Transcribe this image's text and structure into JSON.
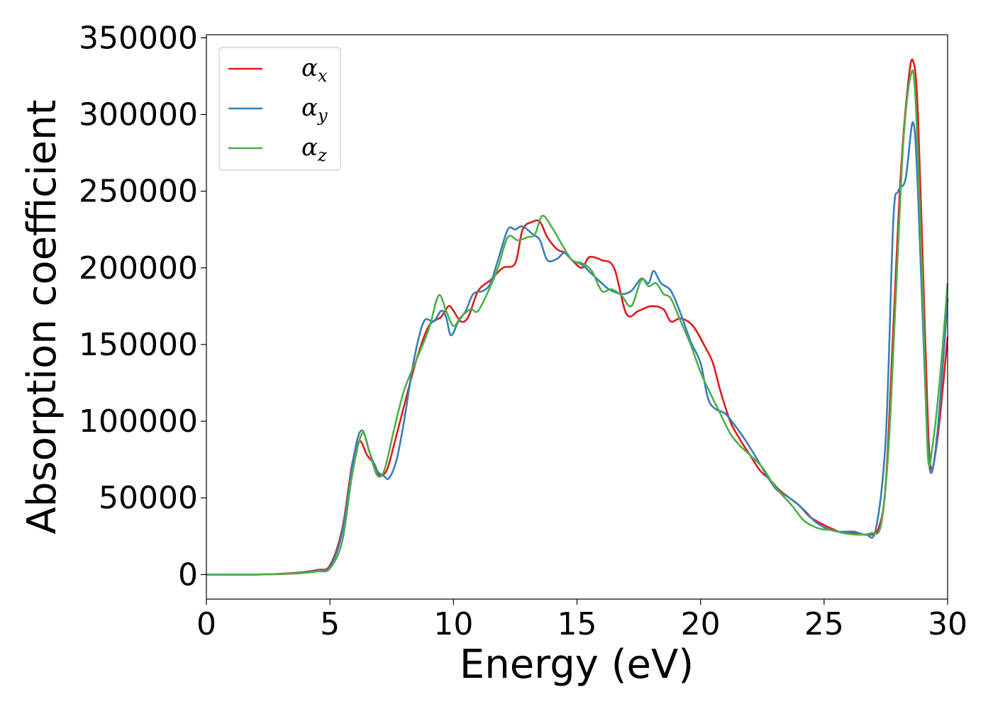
{
  "chart_data": {
    "type": "line",
    "title": "",
    "xlabel": "Energy (eV)",
    "ylabel": "Absorption coefficient",
    "xlim": [
      0,
      30
    ],
    "ylim": [
      -16000,
      352000
    ],
    "xticks": [
      "0",
      "5",
      "10",
      "15",
      "20",
      "25",
      "30"
    ],
    "yticks": [
      "0",
      "50000",
      "100000",
      "150000",
      "200000",
      "250000",
      "300000",
      "350000"
    ],
    "grid": false,
    "legend_position": "top-left",
    "series": [
      {
        "name": "α_x",
        "legend_symbol": "α",
        "legend_sub": "x",
        "color": "#e41a1c",
        "points": [
          [
            0,
            0
          ],
          [
            2,
            0
          ],
          [
            3.5,
            1000
          ],
          [
            4.5,
            3000
          ],
          [
            5,
            6000
          ],
          [
            5.5,
            30000
          ],
          [
            5.9,
            72000
          ],
          [
            6.2,
            87000
          ],
          [
            6.5,
            78000
          ],
          [
            6.8,
            72000
          ],
          [
            7,
            65000
          ],
          [
            7.3,
            68000
          ],
          [
            7.6,
            85000
          ],
          [
            8,
            110000
          ],
          [
            8.5,
            140000
          ],
          [
            9,
            162000
          ],
          [
            9.5,
            168000
          ],
          [
            9.8,
            175000
          ],
          [
            10,
            172000
          ],
          [
            10.3,
            165000
          ],
          [
            10.6,
            168000
          ],
          [
            11,
            185000
          ],
          [
            11.5,
            192000
          ],
          [
            12,
            200000
          ],
          [
            12.5,
            203000
          ],
          [
            12.8,
            225000
          ],
          [
            13.2,
            230000
          ],
          [
            13.5,
            230000
          ],
          [
            13.8,
            220000
          ],
          [
            14.2,
            212000
          ],
          [
            14.5,
            210000
          ],
          [
            14.8,
            205000
          ],
          [
            15.2,
            200000
          ],
          [
            15.5,
            207000
          ],
          [
            16,
            205000
          ],
          [
            16.5,
            200000
          ],
          [
            17,
            170000
          ],
          [
            17.5,
            172000
          ],
          [
            18,
            175000
          ],
          [
            18.5,
            173000
          ],
          [
            18.8,
            165000
          ],
          [
            19.2,
            167000
          ],
          [
            19.7,
            162000
          ],
          [
            20.2,
            148000
          ],
          [
            20.5,
            138000
          ],
          [
            20.8,
            120000
          ],
          [
            21.2,
            100000
          ],
          [
            21.6,
            88000
          ],
          [
            22,
            78000
          ],
          [
            22.4,
            68000
          ],
          [
            22.8,
            62000
          ],
          [
            23.2,
            55000
          ],
          [
            23.6,
            50000
          ],
          [
            24,
            45000
          ],
          [
            24.4,
            38000
          ],
          [
            24.8,
            34000
          ],
          [
            25.3,
            30000
          ],
          [
            25.8,
            27000
          ],
          [
            26.3,
            27000
          ],
          [
            26.8,
            26000
          ],
          [
            27.2,
            30000
          ],
          [
            27.5,
            60000
          ],
          [
            27.8,
            160000
          ],
          [
            28.1,
            260000
          ],
          [
            28.4,
            320000
          ],
          [
            28.6,
            335000
          ],
          [
            28.8,
            300000
          ],
          [
            29.1,
            150000
          ],
          [
            29.3,
            72000
          ],
          [
            29.6,
            90000
          ],
          [
            30,
            155000
          ]
        ]
      },
      {
        "name": "α_y",
        "legend_symbol": "α",
        "legend_sub": "y",
        "color": "#377eb8",
        "points": [
          [
            0,
            0
          ],
          [
            2,
            0
          ],
          [
            3.5,
            800
          ],
          [
            4.5,
            2500
          ],
          [
            5,
            5000
          ],
          [
            5.5,
            28000
          ],
          [
            6,
            80000
          ],
          [
            6.3,
            94000
          ],
          [
            6.6,
            80000
          ],
          [
            6.9,
            68000
          ],
          [
            7.2,
            64000
          ],
          [
            7.4,
            63000
          ],
          [
            7.7,
            75000
          ],
          [
            8,
            100000
          ],
          [
            8.4,
            140000
          ],
          [
            8.8,
            165000
          ],
          [
            9.2,
            165000
          ],
          [
            9.5,
            172000
          ],
          [
            9.7,
            168000
          ],
          [
            9.9,
            156000
          ],
          [
            10.2,
            165000
          ],
          [
            10.5,
            172000
          ],
          [
            10.8,
            183000
          ],
          [
            11.2,
            185000
          ],
          [
            11.5,
            190000
          ],
          [
            11.8,
            205000
          ],
          [
            12.2,
            225000
          ],
          [
            12.5,
            225000
          ],
          [
            12.8,
            227000
          ],
          [
            13.2,
            222000
          ],
          [
            13.5,
            218000
          ],
          [
            13.8,
            205000
          ],
          [
            14.2,
            206000
          ],
          [
            14.5,
            210000
          ],
          [
            14.8,
            205000
          ],
          [
            15.2,
            202000
          ],
          [
            15.6,
            196000
          ],
          [
            16,
            190000
          ],
          [
            16.3,
            186000
          ],
          [
            16.8,
            183000
          ],
          [
            17.2,
            185000
          ],
          [
            17.6,
            193000
          ],
          [
            17.9,
            190000
          ],
          [
            18.1,
            198000
          ],
          [
            18.4,
            190000
          ],
          [
            18.8,
            185000
          ],
          [
            19.2,
            170000
          ],
          [
            19.6,
            152000
          ],
          [
            20,
            138000
          ],
          [
            20.3,
            115000
          ],
          [
            20.6,
            108000
          ],
          [
            21,
            105000
          ],
          [
            21.4,
            97000
          ],
          [
            21.8,
            88000
          ],
          [
            22.3,
            75000
          ],
          [
            22.7,
            64000
          ],
          [
            23.1,
            55000
          ],
          [
            23.6,
            50000
          ],
          [
            24.2,
            42000
          ],
          [
            24.6,
            35000
          ],
          [
            25.1,
            30000
          ],
          [
            25.6,
            28000
          ],
          [
            26.2,
            28000
          ],
          [
            26.7,
            26000
          ],
          [
            27.1,
            30000
          ],
          [
            27.5,
            90000
          ],
          [
            27.8,
            230000
          ],
          [
            28,
            250000
          ],
          [
            28.3,
            258000
          ],
          [
            28.6,
            295000
          ],
          [
            28.8,
            250000
          ],
          [
            29.1,
            120000
          ],
          [
            29.3,
            67000
          ],
          [
            29.6,
            95000
          ],
          [
            30,
            180000
          ]
        ]
      },
      {
        "name": "α_z",
        "legend_symbol": "α",
        "legend_sub": "z",
        "color": "#4daf4a",
        "points": [
          [
            0,
            0
          ],
          [
            2,
            0
          ],
          [
            3.5,
            600
          ],
          [
            4.5,
            2000
          ],
          [
            5,
            4000
          ],
          [
            5.5,
            22000
          ],
          [
            5.9,
            65000
          ],
          [
            6.3,
            92000
          ],
          [
            6.6,
            80000
          ],
          [
            6.9,
            65000
          ],
          [
            7.2,
            68000
          ],
          [
            7.6,
            95000
          ],
          [
            8,
            120000
          ],
          [
            8.5,
            140000
          ],
          [
            9,
            160000
          ],
          [
            9.4,
            182000
          ],
          [
            9.7,
            172000
          ],
          [
            10,
            162000
          ],
          [
            10.3,
            168000
          ],
          [
            10.7,
            173000
          ],
          [
            11,
            172000
          ],
          [
            11.5,
            188000
          ],
          [
            11.8,
            200000
          ],
          [
            12.2,
            220000
          ],
          [
            12.6,
            218000
          ],
          [
            13,
            220000
          ],
          [
            13.3,
            222000
          ],
          [
            13.6,
            234000
          ],
          [
            14,
            226000
          ],
          [
            14.4,
            215000
          ],
          [
            14.8,
            205000
          ],
          [
            15.2,
            203000
          ],
          [
            15.6,
            198000
          ],
          [
            16,
            185000
          ],
          [
            16.4,
            186000
          ],
          [
            16.8,
            182000
          ],
          [
            17.2,
            175000
          ],
          [
            17.6,
            192000
          ],
          [
            17.9,
            188000
          ],
          [
            18.2,
            190000
          ],
          [
            18.5,
            183000
          ],
          [
            18.8,
            180000
          ],
          [
            19.2,
            165000
          ],
          [
            19.6,
            150000
          ],
          [
            20,
            132000
          ],
          [
            20.4,
            118000
          ],
          [
            20.8,
            105000
          ],
          [
            21.2,
            92000
          ],
          [
            21.6,
            84000
          ],
          [
            22,
            78000
          ],
          [
            22.5,
            70000
          ],
          [
            22.9,
            60000
          ],
          [
            23.3,
            52000
          ],
          [
            23.7,
            45000
          ],
          [
            24.2,
            35000
          ],
          [
            24.8,
            30000
          ],
          [
            25.3,
            29000
          ],
          [
            25.8,
            27000
          ],
          [
            26.4,
            26000
          ],
          [
            26.9,
            27000
          ],
          [
            27.3,
            32000
          ],
          [
            27.6,
            80000
          ],
          [
            27.9,
            180000
          ],
          [
            28.2,
            280000
          ],
          [
            28.5,
            325000
          ],
          [
            28.7,
            310000
          ],
          [
            29,
            180000
          ],
          [
            29.2,
            78000
          ],
          [
            29.4,
            85000
          ],
          [
            29.7,
            130000
          ],
          [
            30,
            190000
          ]
        ]
      }
    ]
  }
}
